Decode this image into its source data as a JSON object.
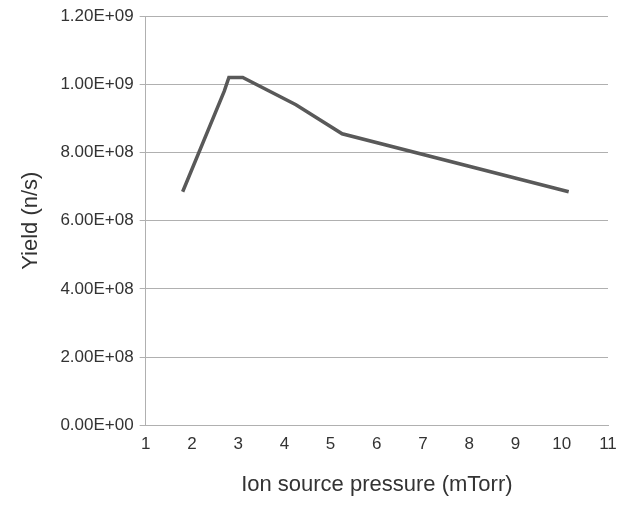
{
  "chart_data": {
    "type": "line",
    "x_label": "Ion source pressure (mTorr)",
    "y_label": "Yield (n/s)",
    "x": [
      1.8,
      2.7,
      2.8,
      3.1,
      4.25,
      5.25,
      10.15
    ],
    "values": [
      685000000,
      980000000,
      1020000000,
      1020000000,
      940000000,
      855000000,
      685000000
    ],
    "color": "#595959",
    "xlim": [
      1,
      11
    ],
    "xticks": [
      1,
      2,
      3,
      4,
      5,
      6,
      7,
      8,
      9,
      10,
      11
    ],
    "ylim": [
      0,
      1200000000
    ],
    "yticks": [
      {
        "value": 0,
        "label": "0.00E+00"
      },
      {
        "value": 200000000,
        "label": "2.00E+08"
      },
      {
        "value": 400000000,
        "label": "4.00E+08"
      },
      {
        "value": 600000000,
        "label": "6.00E+08"
      },
      {
        "value": 800000000,
        "label": "8.00E+08"
      },
      {
        "value": 1000000000,
        "label": "1.00E+09"
      },
      {
        "value": 1200000000,
        "label": "1.20E+09"
      }
    ],
    "grid": true
  }
}
